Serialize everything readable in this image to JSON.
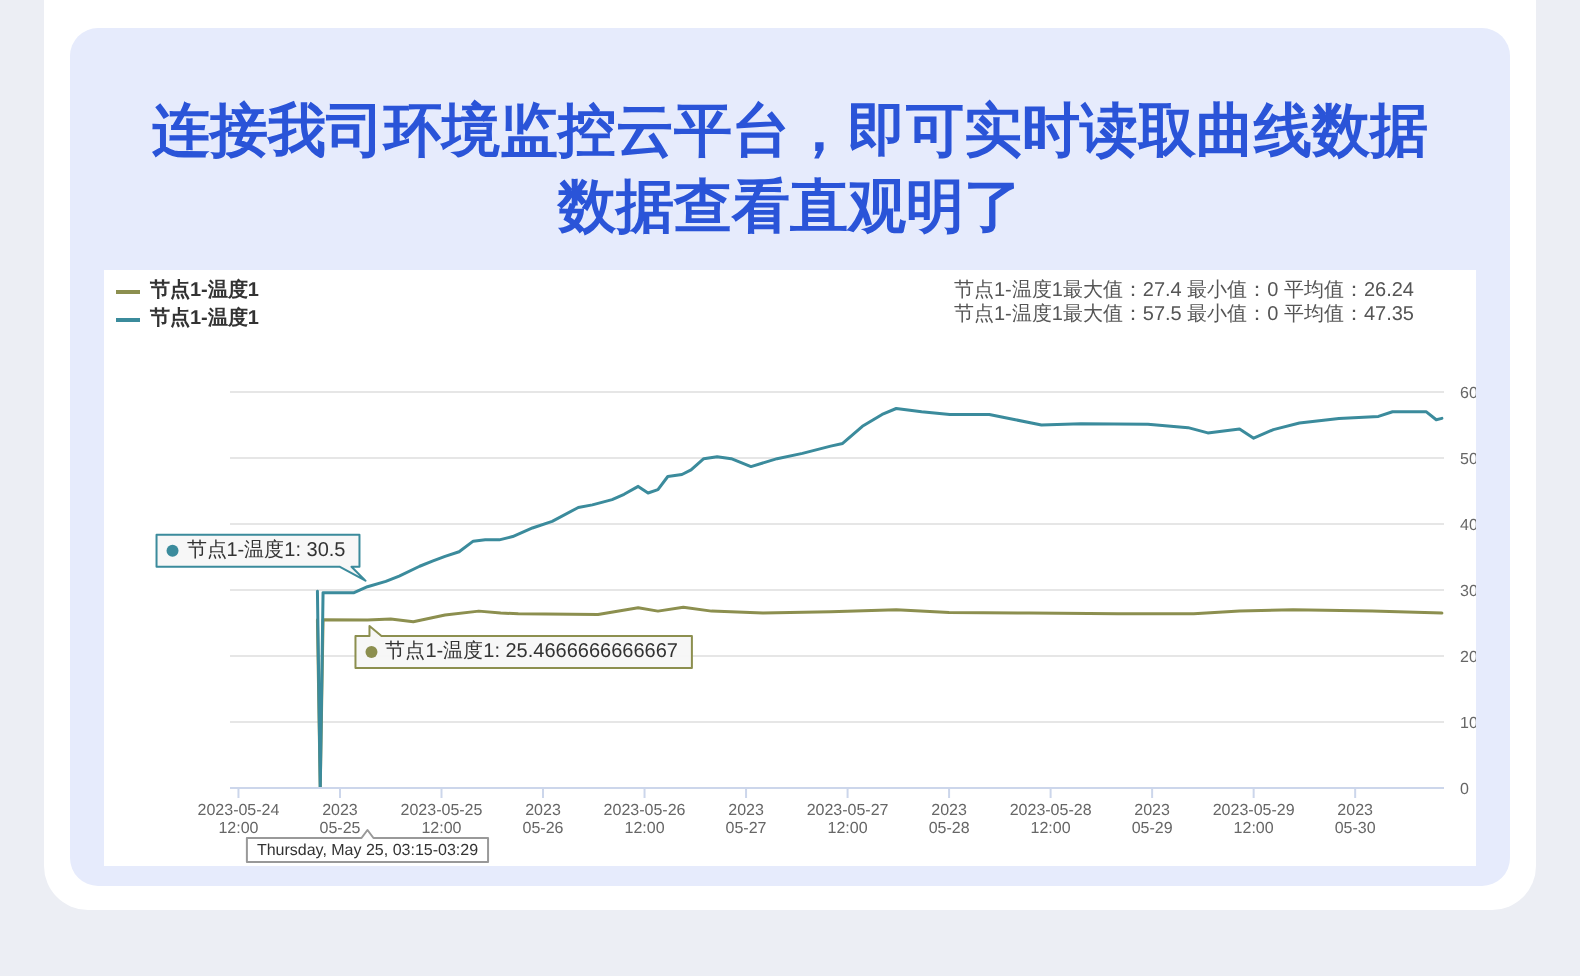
{
  "chart_data": {
    "type": "line",
    "title": "连接我司环境监控云平台，即可实时读取曲线数据数据查看直观明了",
    "xlim": [
      "2023-05-24T11:00",
      "2023-05-30T10:30"
    ],
    "xticks": [
      {
        "value": "2023-05-24T12:00",
        "label": "2023-05-24 12:00"
      },
      {
        "value": "2023-05-25",
        "label": "2023 05-25"
      },
      {
        "value": "2023-05-25T12:00",
        "label": "2023-05-25 12:00"
      },
      {
        "value": "2023-05-26",
        "label": "2023 05-26"
      },
      {
        "value": "2023-05-26T12:00",
        "label": "2023-05-26 12:00"
      },
      {
        "value": "2023-05-27",
        "label": "2023 05-27"
      },
      {
        "value": "2023-05-27T12:00",
        "label": "2023-05-27 12:00"
      },
      {
        "value": "2023-05-28",
        "label": "2023 05-28"
      },
      {
        "value": "2023-05-28T12:00",
        "label": "2023-05-28 12:00"
      },
      {
        "value": "2023-05-29",
        "label": "2023 05-29"
      },
      {
        "value": "2023-05-29T12:00",
        "label": "2023-05-29 12:00"
      },
      {
        "value": "2023-05-30",
        "label": "2023 05-30"
      }
    ],
    "ylim": [
      0,
      60
    ],
    "yticks": [
      0,
      10,
      20,
      30,
      40,
      50,
      60
    ],
    "grid": "y",
    "legend": "top left",
    "marker": "none",
    "line_style": "solid",
    "series": [
      {
        "name": "节点1-温度1",
        "color": "#8c8f4f",
        "x": [
          "2023-05-24T21:20",
          "2023-05-24T21:40",
          "2023-05-24T22:00",
          "2023-05-25T03:15",
          "2023-05-25T06:00",
          "2023-05-25T08:40",
          "2023-05-25T12:25",
          "2023-05-25T16:25",
          "2023-05-25T19:00",
          "2023-05-25T21:05",
          "2023-05-26T06:30",
          "2023-05-26T11:15",
          "2023-05-26T13:35",
          "2023-05-26T16:35",
          "2023-05-26T19:55",
          "2023-05-27T02:00",
          "2023-05-27T10:00",
          "2023-05-27T17:45",
          "2023-05-28T00:00",
          "2023-05-28T09:30",
          "2023-05-28T20:00",
          "2023-05-29T04:55",
          "2023-05-29T10:20",
          "2023-05-29T16:40",
          "2023-05-30T02:00",
          "2023-05-30T10:15"
        ],
        "values": [
          25.5,
          0,
          25.5,
          25.4666666666667,
          25.6,
          25.2,
          26.2,
          26.8,
          26.5,
          26.4,
          26.3,
          27.3,
          26.8,
          27.4,
          26.8,
          26.5,
          26.7,
          27.0,
          26.6,
          26.5,
          26.4,
          26.4,
          26.8,
          27.0,
          26.8,
          26.5
        ]
      },
      {
        "name": "节点1-温度1",
        "color": "#3b8b9c",
        "x": [
          "2023-05-24T21:20",
          "2023-05-24T21:40",
          "2023-05-24T22:00",
          "2023-05-25T01:40",
          "2023-05-25T03:15",
          "2023-05-25T05:25",
          "2023-05-25T07:00",
          "2023-05-25T09:25",
          "2023-05-25T11:00",
          "2023-05-25T12:25",
          "2023-05-25T14:05",
          "2023-05-25T15:45",
          "2023-05-25T17:10",
          "2023-05-25T18:50",
          "2023-05-25T20:25",
          "2023-05-25T22:45",
          "2023-05-26T01:05",
          "2023-05-26T04:10",
          "2023-05-26T05:50",
          "2023-05-26T08:10",
          "2023-05-26T09:35",
          "2023-05-26T11:15",
          "2023-05-26T12:25",
          "2023-05-26T13:35",
          "2023-05-26T14:45",
          "2023-05-26T16:25",
          "2023-05-26T17:30",
          "2023-05-26T19:00",
          "2023-05-26T20:35",
          "2023-05-26T22:15",
          "2023-05-27T00:35",
          "2023-05-27T03:40",
          "2023-05-27T06:40",
          "2023-05-27T10:00",
          "2023-05-27T11:25",
          "2023-05-27T13:45",
          "2023-05-27T16:05",
          "2023-05-27T17:45",
          "2023-05-27T20:45",
          "2023-05-28T00:05",
          "2023-05-28T04:45",
          "2023-05-28T07:50",
          "2023-05-28T10:55",
          "2023-05-28T15:35",
          "2023-05-28T23:30",
          "2023-05-29T04:15",
          "2023-05-29T06:35",
          "2023-05-29T10:20",
          "2023-05-29T12:00",
          "2023-05-29T14:20",
          "2023-05-29T17:25",
          "2023-05-29T22:05",
          "2023-05-30T02:45",
          "2023-05-30T04:25",
          "2023-05-30T08:25",
          "2023-05-30T09:35",
          "2023-05-30T10:15"
        ],
        "values": [
          29.8,
          0,
          29.6,
          29.6,
          30.5,
          31.3,
          32.1,
          33.6,
          34.4,
          35.1,
          35.8,
          37.4,
          37.6,
          37.6,
          38.1,
          39.4,
          40.4,
          42.5,
          42.9,
          43.7,
          44.5,
          45.7,
          44.7,
          45.2,
          47.2,
          47.5,
          48.2,
          49.9,
          50.2,
          49.9,
          48.7,
          49.9,
          50.7,
          51.8,
          52.2,
          54.8,
          56.6,
          57.5,
          57.0,
          56.6,
          56.6,
          55.8,
          55.0,
          55.2,
          55.1,
          54.6,
          53.8,
          54.4,
          53.0,
          54.3,
          55.3,
          56.0,
          56.3,
          57.0,
          57.0,
          55.8,
          56.0
        ]
      }
    ],
    "annotations": [
      "节点1-温度1最大值：27.4 最小值：0 平均值：26.24",
      "节点1-温度1最大值：57.5 最小值：0 平均值：47.35",
      {
        "text": "节点1-温度1: 30.5",
        "x": "2023-05-25T03:15",
        "y": 30.5
      },
      {
        "text": "节点1-温度1: 25.4666666666667",
        "x": "2023-05-25T03:15",
        "y": 25.4666666666667
      },
      "Thursday, May 25, 03:15-03:29"
    ]
  }
}
